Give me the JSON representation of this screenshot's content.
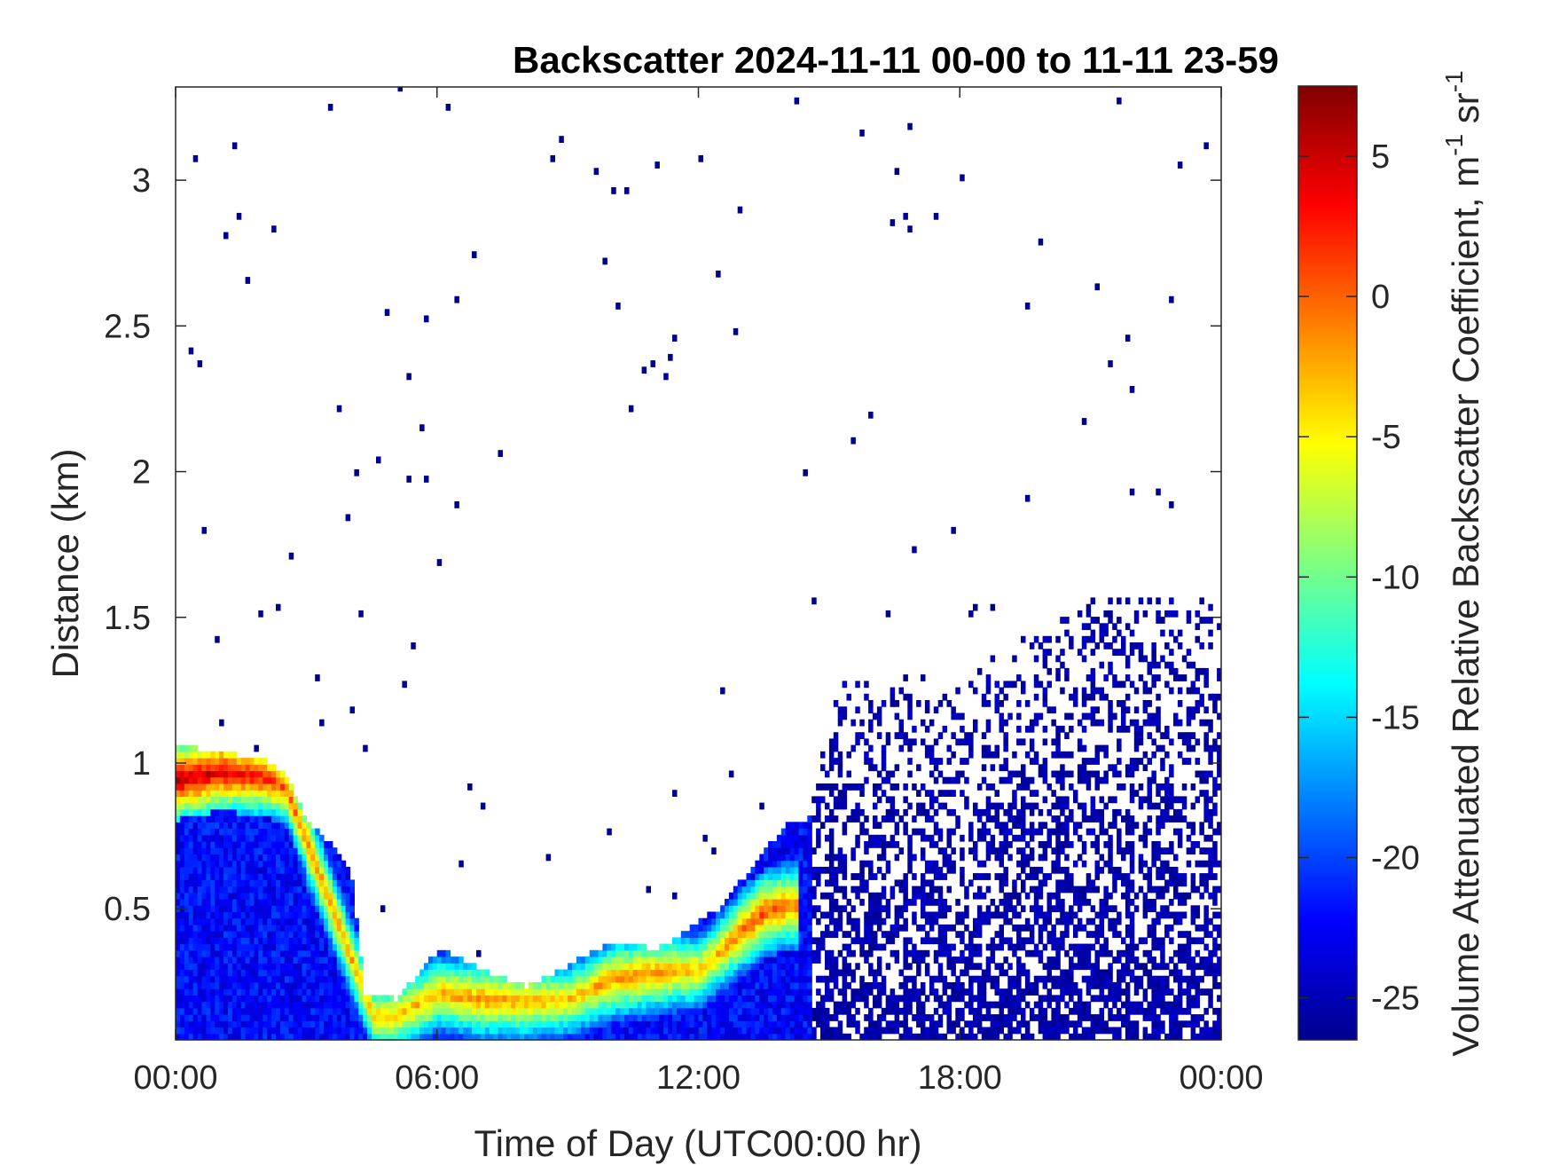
{
  "chart_data": {
    "type": "heatmap",
    "title": "Backscatter 2024-11-11 00-00 to 11-11 23-59",
    "xlabel": "Time of Day (UTC00:00 hr)",
    "ylabel": "Distance (km)",
    "xlim": [
      0,
      24
    ],
    "ylim": [
      0.05,
      3.32
    ],
    "x_ticks": [
      0,
      6,
      12,
      18,
      24
    ],
    "x_tick_labels": [
      "00:00",
      "06:00",
      "12:00",
      "18:00",
      "00:00"
    ],
    "y_ticks": [
      0.5,
      1,
      1.5,
      2,
      2.5,
      3
    ],
    "y_tick_labels": [
      "0.5",
      "1",
      "1.5",
      "2",
      "2.5",
      "3"
    ],
    "grid": false,
    "colormap": "jet",
    "colorbar": {
      "label": "Volume Attenuated Relative Backscatter Coefficient, m",
      "label_sup1": "-1",
      "label_mid": " sr",
      "label_sup2": "-1",
      "range": [
        -26.5,
        7.5
      ],
      "ticks": [
        5,
        0,
        -5,
        -10,
        -15,
        -20,
        -25
      ],
      "tick_labels": [
        "5",
        "0",
        "-5",
        "-10",
        "-15",
        "-20",
        "-25"
      ]
    },
    "boundary_layer_top_km": {
      "time_hr": [
        0,
        1,
        2,
        2.5,
        3,
        3.5,
        4,
        4.3,
        5,
        6,
        7,
        8,
        9,
        10,
        11,
        12,
        12.5,
        13,
        13.5,
        14,
        14.5,
        15,
        16,
        17,
        18,
        19,
        20,
        21
      ],
      "height_km": [
        1.05,
        1.03,
        1.0,
        0.95,
        0.78,
        0.72,
        0.6,
        0.2,
        0.18,
        0.35,
        0.28,
        0.22,
        0.3,
        0.38,
        0.35,
        0.45,
        0.5,
        0.6,
        0.7,
        0.78,
        0.8,
        1.25,
        1.3,
        1.2,
        1.25,
        1.4,
        1.45,
        1.55
      ]
    },
    "backscatter_max_layer": {
      "time_hr": [
        0,
        1,
        2,
        2.5,
        4.5,
        5,
        6,
        7,
        8,
        9,
        10,
        11,
        12,
        12.5,
        13,
        13.5,
        14
      ],
      "height_km": [
        0.93,
        0.96,
        0.94,
        0.9,
        0.12,
        0.12,
        0.2,
        0.18,
        0.17,
        0.18,
        0.25,
        0.27,
        0.28,
        0.35,
        0.42,
        0.48,
        0.5
      ],
      "value": [
        6,
        5,
        3,
        0,
        -3,
        -3,
        -2,
        -1,
        -2,
        -3,
        -1,
        -1,
        -3,
        -2,
        0,
        1,
        0
      ]
    },
    "base_value": -22,
    "background_noise_value": -26
  }
}
